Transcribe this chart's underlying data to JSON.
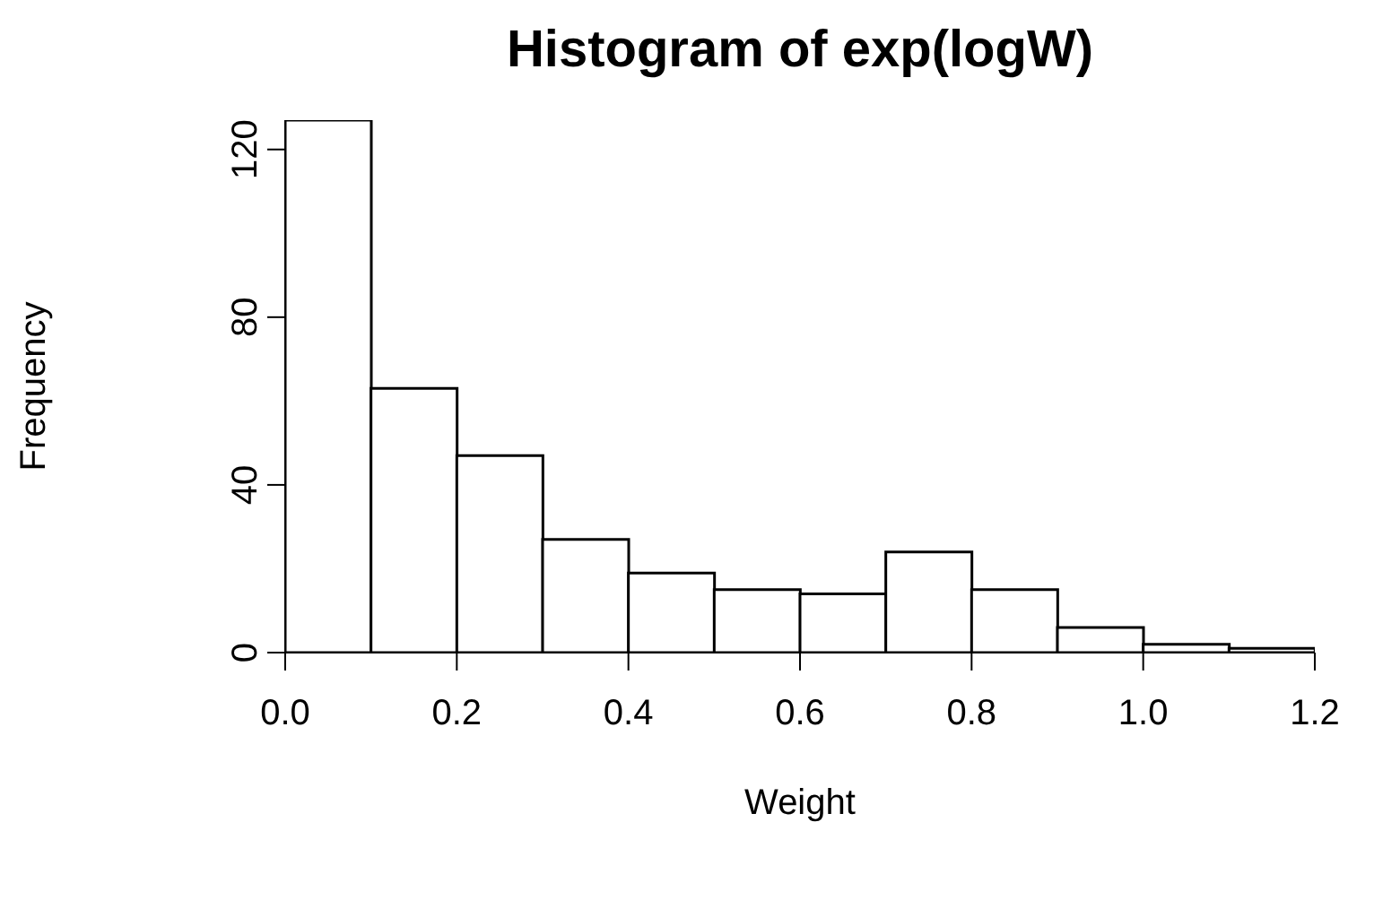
{
  "chart_data": {
    "type": "histogram",
    "title": "Histogram of exp(logW)",
    "xlabel": "Weight",
    "ylabel": "Frequency",
    "bins": [
      0.0,
      0.1,
      0.2,
      0.3,
      0.4,
      0.5,
      0.6,
      0.7,
      0.8,
      0.9,
      1.0,
      1.1,
      1.2
    ],
    "values": [
      127,
      63,
      47,
      27,
      19,
      15,
      14,
      24,
      15,
      6,
      2,
      1
    ],
    "color": "#ffffff",
    "xlim": [
      0.0,
      1.2
    ],
    "xticks": [
      {
        "value": 0.0,
        "label": "0.0"
      },
      {
        "value": 0.2,
        "label": "0.2"
      },
      {
        "value": 0.4,
        "label": "0.4"
      },
      {
        "value": 0.6,
        "label": "0.6"
      },
      {
        "value": 0.8,
        "label": "0.8"
      },
      {
        "value": 1.0,
        "label": "1.0"
      },
      {
        "value": 1.2,
        "label": "1.2"
      }
    ],
    "ylim": [
      0,
      127
    ],
    "yticks": [
      0,
      40,
      80,
      120
    ],
    "grid": false
  }
}
